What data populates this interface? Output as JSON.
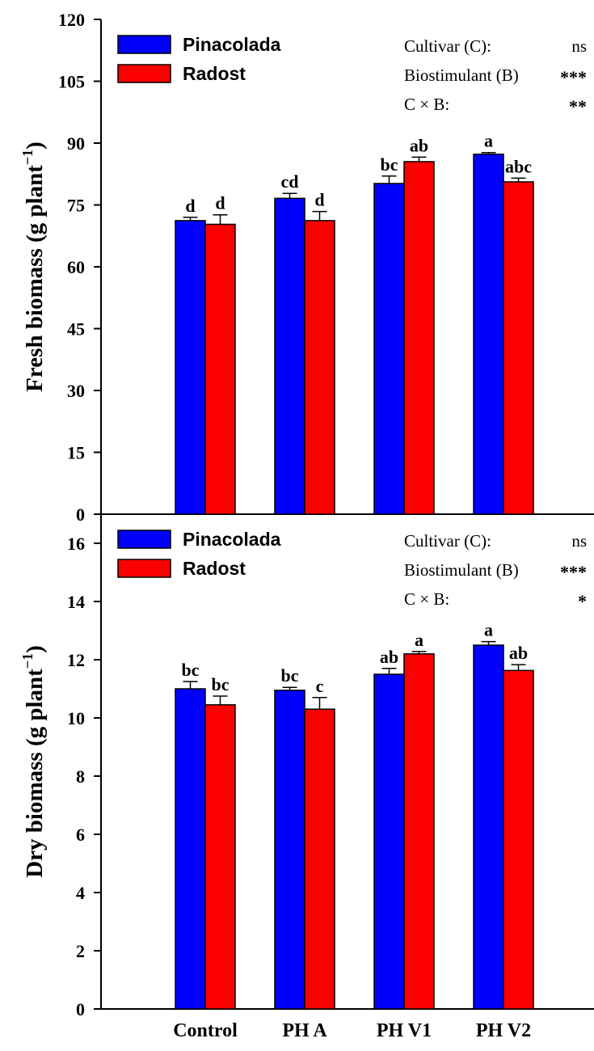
{
  "colors": {
    "pinacolada": "#0000ff",
    "radost": "#ff0000"
  },
  "chart_data": [
    {
      "type": "bar",
      "ylabel": "Fresh biomass (g plant",
      "ylabel_sup": "−1",
      "ylabel_close": ")",
      "ylim": [
        0,
        120
      ],
      "yticks": [
        0,
        15,
        30,
        45,
        60,
        75,
        90,
        105,
        120
      ],
      "categories": [
        "Control",
        "PH A",
        "PH V1",
        "PH V2"
      ],
      "legend_placement": "top-left",
      "series": [
        {
          "name": "Pinacolada",
          "values": [
            71.2,
            76.6,
            80.2,
            87.3
          ],
          "errors": [
            0.8,
            1.2,
            1.8,
            0.4
          ],
          "letters": [
            "d",
            "cd",
            "bc",
            "a"
          ]
        },
        {
          "name": "Radost",
          "values": [
            70.3,
            71.2,
            85.5,
            80.6
          ],
          "errors": [
            2.3,
            2.2,
            1.1,
            0.9
          ],
          "letters": [
            "d",
            "d",
            "ab",
            "abc"
          ]
        }
      ],
      "stats": [
        {
          "label": "Cultivar (C):",
          "sig": "ns"
        },
        {
          "label": "Biostimulant (B)",
          "sig": "***"
        },
        {
          "label": "C × B:",
          "sig": "**"
        }
      ]
    },
    {
      "type": "bar",
      "ylabel": "Dry biomass (g plant",
      "ylabel_sup": "−1",
      "ylabel_close": ")",
      "ylim": [
        0,
        17
      ],
      "yticks": [
        0,
        2,
        4,
        6,
        8,
        10,
        12,
        14,
        16
      ],
      "categories": [
        "Control",
        "PH A",
        "PH V1",
        "PH V2"
      ],
      "legend_placement": "top-left",
      "series": [
        {
          "name": "Pinacolada",
          "values": [
            11.0,
            10.95,
            11.5,
            12.5
          ],
          "errors": [
            0.25,
            0.1,
            0.2,
            0.12
          ],
          "letters": [
            "bc",
            "bc",
            "ab",
            "a"
          ]
        },
        {
          "name": "Radost",
          "values": [
            10.45,
            10.3,
            12.2,
            11.63
          ],
          "errors": [
            0.3,
            0.4,
            0.08,
            0.2
          ],
          "letters": [
            "bc",
            "c",
            "a",
            "ab"
          ]
        }
      ],
      "stats": [
        {
          "label": "Cultivar (C):",
          "sig": "ns"
        },
        {
          "label": "Biostimulant (B)",
          "sig": "***"
        },
        {
          "label": "C × B:",
          "sig": "*"
        }
      ]
    }
  ]
}
